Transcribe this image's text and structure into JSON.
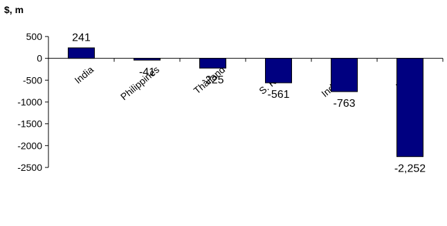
{
  "chart_data": {
    "type": "bar",
    "title": "",
    "unit_label": "$, m",
    "xlabel": "",
    "ylabel": "",
    "ylim": [
      -2500,
      500
    ],
    "yticks": [
      500,
      0,
      -500,
      -1000,
      -1500,
      -2000,
      -2500
    ],
    "categories": [
      "India",
      "Philippines",
      "Thailand",
      "S. Korea",
      "Indonesia",
      "Taiwan"
    ],
    "values": [
      241,
      -41,
      -225,
      -561,
      -763,
      -2252
    ],
    "data_labels": [
      "241",
      "-41",
      "-225",
      "-561",
      "-763",
      "-2,252"
    ],
    "grid": false,
    "legend": "none",
    "colors": {
      "bar": "#000080",
      "bar_edge": "#000000",
      "axis": "#000000"
    }
  }
}
